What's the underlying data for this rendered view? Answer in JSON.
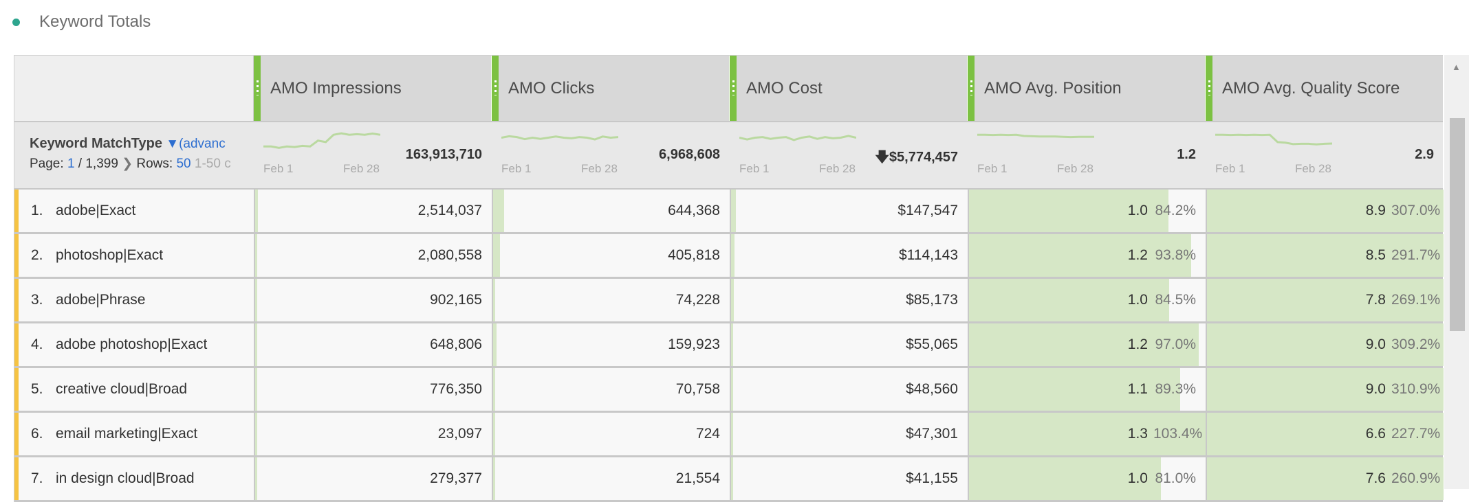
{
  "title": "Keyword Totals",
  "dimension": {
    "label": "Keyword MatchType",
    "filter": "(advanc",
    "page_label": "Page:",
    "page": "1",
    "page_total": "/ 1,399",
    "rows_label": "Rows:",
    "rows": "50",
    "range": "1-50 c"
  },
  "spark_labels": {
    "start": "Feb 1",
    "end": "Feb 28"
  },
  "columns": [
    {
      "label": "AMO Impressions",
      "total": "163,913,710",
      "spark": [
        3,
        3,
        2.5,
        3,
        2.8,
        3.2,
        3,
        5,
        4.5,
        7,
        7.5,
        7,
        7.2,
        7,
        7.4,
        7
      ]
    },
    {
      "label": "AMO Clicks",
      "total": "6,968,608",
      "spark": [
        6,
        6.5,
        6.2,
        5.5,
        6,
        5.6,
        6,
        6.4,
        6,
        5.8,
        6.2,
        6,
        5.4,
        6.4,
        6,
        6.2
      ]
    },
    {
      "label": "AMO Cost",
      "total": "$5,774,457",
      "sort_icon": "arrow-down",
      "spark": [
        6,
        5.4,
        6,
        6.2,
        5.6,
        6,
        6.2,
        5.2,
        6,
        6.4,
        5.6,
        6.2,
        5.8,
        6,
        6.6,
        6
      ]
    },
    {
      "label": "AMO Avg. Position",
      "total": "1.2",
      "spark": [
        7,
        7,
        6.9,
        7,
        6.9,
        7,
        6.6,
        6.5,
        6.4,
        6.4,
        6.4,
        6.3,
        6.2,
        6.3,
        6.3,
        6.3
      ]
    },
    {
      "label": "AMO Avg. Quality Score",
      "total": "2.9",
      "spark": [
        7,
        7,
        6.9,
        7,
        6.9,
        7,
        6.9,
        7,
        4.5,
        4.3,
        3.8,
        3.9,
        3.9,
        3.7,
        3.9,
        4
      ]
    }
  ],
  "rows": [
    {
      "num": "1.",
      "name": "adobe|Exact",
      "impressions": "2,514,037",
      "clicks": "644,368",
      "cost": "$147,547",
      "position": "1.0",
      "position_pct": "84.2%",
      "quality": "8.9",
      "quality_pct": "307.0%",
      "fills": [
        0.012,
        0.046,
        0.02,
        0.842,
        1
      ]
    },
    {
      "num": "2.",
      "name": "photoshop|Exact",
      "impressions": "2,080,558",
      "clicks": "405,818",
      "cost": "$114,143",
      "position": "1.2",
      "position_pct": "93.8%",
      "quality": "8.5",
      "quality_pct": "291.7%",
      "fills": [
        0.01,
        0.029,
        0.015,
        0.938,
        1
      ]
    },
    {
      "num": "3.",
      "name": "adobe|Phrase",
      "impressions": "902,165",
      "clicks": "74,228",
      "cost": "$85,173",
      "position": "1.0",
      "position_pct": "84.5%",
      "quality": "7.8",
      "quality_pct": "269.1%",
      "fills": [
        0.006,
        0.006,
        0.012,
        0.845,
        1
      ]
    },
    {
      "num": "4.",
      "name": "adobe photoshop|Exact",
      "impressions": "648,806",
      "clicks": "159,923",
      "cost": "$55,065",
      "position": "1.2",
      "position_pct": "97.0%",
      "quality": "9.0",
      "quality_pct": "309.2%",
      "fills": [
        0.005,
        0.015,
        0.01,
        0.97,
        1
      ]
    },
    {
      "num": "5.",
      "name": "creative cloud|Broad",
      "impressions": "776,350",
      "clicks": "70,758",
      "cost": "$48,560",
      "position": "1.1",
      "position_pct": "89.3%",
      "quality": "9.0",
      "quality_pct": "310.9%",
      "fills": [
        0.005,
        0.006,
        0.008,
        0.893,
        1
      ]
    },
    {
      "num": "6.",
      "name": "email marketing|Exact",
      "impressions": "23,097",
      "clicks": "724",
      "cost": "$47,301",
      "position": "1.3",
      "position_pct": "103.4%",
      "quality": "6.6",
      "quality_pct": "227.7%",
      "fills": [
        0.002,
        0.002,
        0.008,
        1,
        1
      ]
    },
    {
      "num": "7.",
      "name": "in design cloud|Broad",
      "impressions": "279,377",
      "clicks": "21,554",
      "cost": "$41,155",
      "position": "1.0",
      "position_pct": "81.0%",
      "quality": "7.6",
      "quality_pct": "260.9%",
      "fills": [
        0.004,
        0.004,
        0.007,
        0.81,
        1
      ]
    }
  ]
}
